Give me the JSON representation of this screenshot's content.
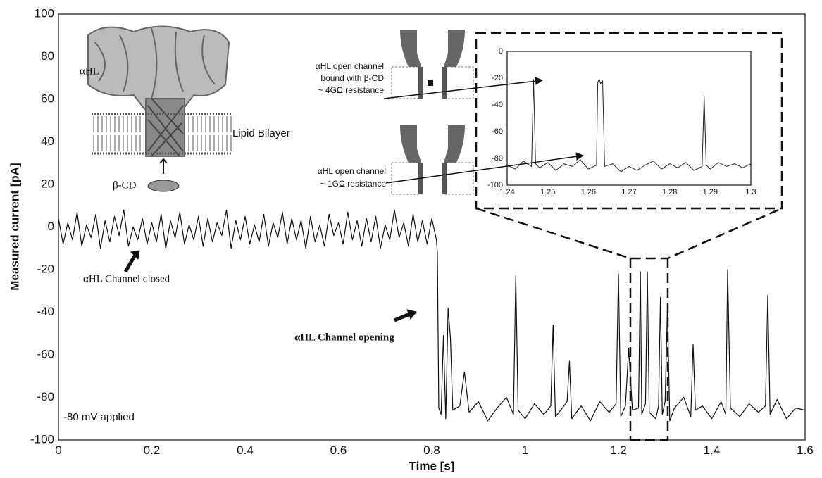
{
  "chart_data": [
    {
      "type": "line",
      "xlabel": "Time [s]",
      "ylabel": "Measured current [pA]",
      "xlim": [
        0,
        1.6
      ],
      "ylim": [
        -100,
        100
      ],
      "xticks": [
        0,
        0.2,
        0.4,
        0.6,
        0.8,
        1,
        1.2,
        1.4,
        1.6
      ],
      "yticks": [
        -100,
        -80,
        -60,
        -40,
        -20,
        0,
        20,
        40,
        60,
        80,
        100
      ],
      "grid": true,
      "color": "#111111",
      "x": [
        0,
        0.01,
        0.02,
        0.03,
        0.04,
        0.05,
        0.06,
        0.07,
        0.08,
        0.09,
        0.1,
        0.11,
        0.12,
        0.13,
        0.14,
        0.15,
        0.16,
        0.17,
        0.18,
        0.19,
        0.2,
        0.21,
        0.22,
        0.23,
        0.24,
        0.25,
        0.26,
        0.27,
        0.28,
        0.29,
        0.3,
        0.31,
        0.32,
        0.33,
        0.34,
        0.35,
        0.36,
        0.37,
        0.38,
        0.39,
        0.4,
        0.41,
        0.42,
        0.43,
        0.44,
        0.45,
        0.46,
        0.47,
        0.48,
        0.49,
        0.5,
        0.51,
        0.52,
        0.53,
        0.54,
        0.55,
        0.56,
        0.57,
        0.58,
        0.59,
        0.6,
        0.61,
        0.62,
        0.63,
        0.64,
        0.65,
        0.66,
        0.67,
        0.68,
        0.69,
        0.7,
        0.71,
        0.72,
        0.73,
        0.74,
        0.75,
        0.76,
        0.77,
        0.78,
        0.79,
        0.8,
        0.81,
        0.812,
        0.815,
        0.82,
        0.825,
        0.83,
        0.835,
        0.84,
        0.845,
        0.86,
        0.87,
        0.88,
        0.9,
        0.92,
        0.94,
        0.96,
        0.975,
        0.98,
        0.985,
        1.0,
        1.02,
        1.04,
        1.055,
        1.06,
        1.065,
        1.08,
        1.09,
        1.095,
        1.1,
        1.12,
        1.14,
        1.16,
        1.18,
        1.195,
        1.2,
        1.205,
        1.215,
        1.222,
        1.23,
        1.243,
        1.247,
        1.25,
        1.258,
        1.262,
        1.266,
        1.28,
        1.286,
        1.29,
        1.294,
        1.3,
        1.305,
        1.31,
        1.32,
        1.34,
        1.355,
        1.36,
        1.365,
        1.38,
        1.4,
        1.42,
        1.43,
        1.434,
        1.44,
        1.46,
        1.48,
        1.5,
        1.515,
        1.52,
        1.525,
        1.54,
        1.56,
        1.58,
        1.6
      ],
      "values": [
        4,
        -8,
        2,
        -6,
        7,
        -9,
        1,
        -5,
        6,
        -10,
        3,
        -7,
        5,
        -4,
        8,
        -9,
        0,
        -6,
        4,
        -8,
        2,
        -7,
        6,
        -10,
        3,
        -5,
        7,
        -8,
        1,
        -6,
        5,
        -9,
        4,
        -7,
        2,
        -4,
        8,
        -10,
        3,
        -6,
        5,
        -8,
        1,
        -7,
        6,
        -9,
        2,
        -5,
        7,
        -8,
        4,
        -6,
        3,
        -10,
        5,
        -7,
        1,
        -9,
        6,
        -4,
        2,
        -8,
        7,
        -6,
        3,
        -9,
        4,
        -7,
        5,
        -10,
        1,
        -6,
        8,
        -5,
        2,
        -9,
        6,
        -7,
        3,
        -8,
        4,
        -6,
        -12,
        -85,
        -88,
        -51,
        -90,
        -38,
        -52,
        -86,
        -84,
        -68,
        -87,
        -82,
        -91,
        -85,
        -80,
        -88,
        -23,
        -86,
        -90,
        -83,
        -88,
        -84,
        -46,
        -89,
        -85,
        -82,
        -63,
        -90,
        -84,
        -91,
        -82,
        -87,
        -83,
        -22,
        -89,
        -84,
        -57,
        -86,
        -85,
        -21,
        -88,
        -83,
        -21,
        -87,
        -90,
        -84,
        -33,
        -88,
        -82,
        -38,
        -91,
        -85,
        -80,
        -89,
        -55,
        -86,
        -84,
        -90,
        -82,
        -88,
        -20,
        -85,
        -89,
        -83,
        -87,
        -84,
        -32,
        -88,
        -81,
        -90,
        -85,
        -86
      ],
      "annotations": [
        "αHL",
        "Lipid Bilayer",
        "β-CD",
        "αHL Channel closed",
        "αHL Channel opening",
        "-80 mV applied",
        [
          "αHL open channel",
          "bound with β-CD",
          "~ 4GΩ resistance"
        ],
        [
          "αHL open channel",
          "~ 1GΩ resistance"
        ]
      ]
    },
    {
      "type": "line",
      "xlim": [
        1.24,
        1.3
      ],
      "ylim": [
        -100,
        0
      ],
      "xticks": [
        1.24,
        1.25,
        1.26,
        1.27,
        1.28,
        1.29,
        1.3
      ],
      "yticks": [
        -100,
        -80,
        -60,
        -40,
        -20,
        0
      ],
      "grid": true,
      "color": "#222222",
      "x": [
        1.24,
        1.242,
        1.244,
        1.246,
        1.2465,
        1.247,
        1.248,
        1.25,
        1.252,
        1.254,
        1.256,
        1.258,
        1.26,
        1.262,
        1.2623,
        1.2627,
        1.263,
        1.2635,
        1.264,
        1.266,
        1.268,
        1.27,
        1.272,
        1.274,
        1.276,
        1.278,
        1.28,
        1.282,
        1.284,
        1.286,
        1.288,
        1.2885,
        1.289,
        1.29,
        1.292,
        1.294,
        1.296,
        1.298,
        1.3
      ],
      "values": [
        -85,
        -88,
        -82,
        -86,
        -21,
        -84,
        -87,
        -83,
        -89,
        -84,
        -86,
        -81,
        -88,
        -85,
        -23,
        -21,
        -24,
        -22,
        -86,
        -84,
        -90,
        -86,
        -89,
        -85,
        -82,
        -88,
        -84,
        -87,
        -83,
        -89,
        -86,
        -33,
        -85,
        -88,
        -83,
        -86,
        -84,
        -87,
        -84
      ]
    }
  ]
}
